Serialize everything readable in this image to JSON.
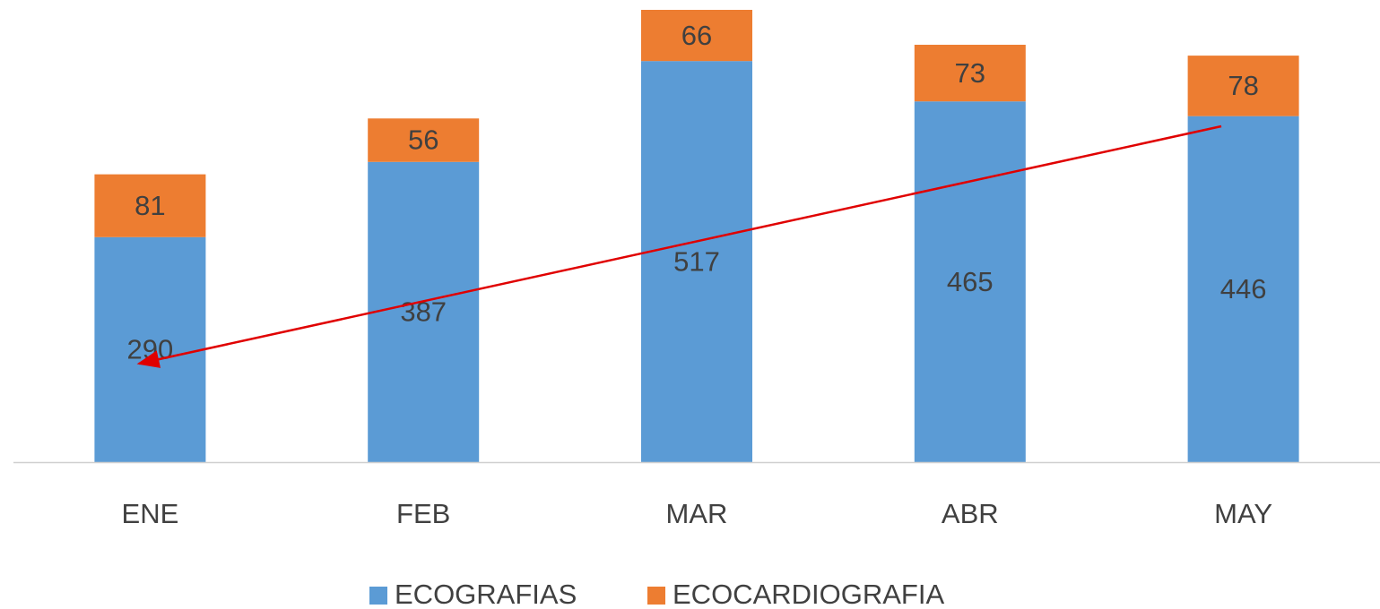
{
  "chart_data": {
    "type": "stacked_bar",
    "categories": [
      "ENE",
      "FEB",
      "MAR",
      "ABR",
      "MAY"
    ],
    "series": [
      {
        "name": "ECOGRAFIAS",
        "color": "#5b9bd5",
        "values": [
          290,
          387,
          517,
          465,
          446
        ]
      },
      {
        "name": "ECOCARDIOGRAFIA",
        "color": "#ed7d31",
        "values": [
          81,
          56,
          66,
          73,
          78
        ]
      }
    ],
    "legend": "bottom"
  }
}
